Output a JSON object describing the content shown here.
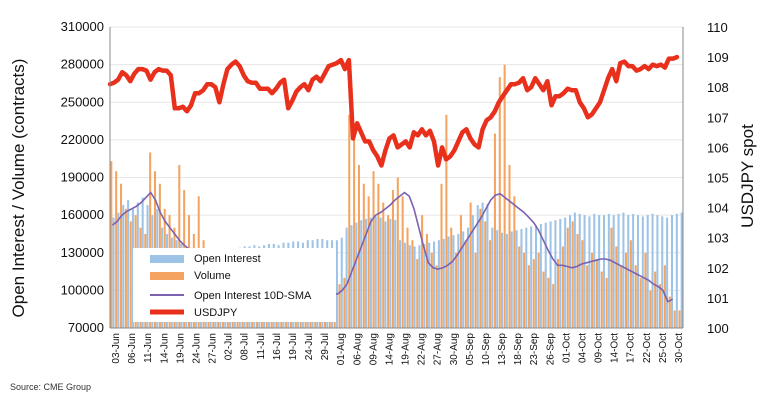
{
  "chart_data": {
    "type": "bar+line",
    "ylabel_left": "Open Interest / Volume (contracts)",
    "ylabel_right": "USDJPY spot",
    "ylim_left": [
      70000,
      310000
    ],
    "yticks_left": [
      "70000",
      "100000",
      "130000",
      "160000",
      "190000",
      "220000",
      "250000",
      "280000",
      "310000"
    ],
    "ylim_right": [
      100,
      110
    ],
    "yticks_right": [
      "100",
      "101",
      "102",
      "103",
      "104",
      "105",
      "106",
      "107",
      "108",
      "109",
      "110"
    ],
    "x_tick_labels": [
      "03-Jun",
      "06-Jun",
      "11-Jun",
      "14-Jun",
      "19-Jun",
      "24-Jun",
      "27-Jun",
      "02-Jul",
      "08-Jul",
      "11-Jul",
      "16-Jul",
      "19-Jul",
      "24-Jul",
      "29-Jul",
      "01-Aug",
      "06-Aug",
      "09-Aug",
      "14-Aug",
      "19-Aug",
      "22-Aug",
      "27-Aug",
      "30-Aug",
      "05-Sep",
      "10-Sep",
      "13-Sep",
      "18-Sep",
      "23-Sep",
      "26-Sep",
      "01-Oct",
      "04-Oct",
      "09-Oct",
      "14-Oct",
      "17-Oct",
      "22-Oct",
      "25-Oct",
      "30-Oct"
    ],
    "legend": [
      "Open Interest",
      "Volume",
      "Open Interest 10D-SMA",
      "USDJPY"
    ],
    "colors": {
      "open_interest": "#9dc3e6",
      "volume": "#f4a460",
      "sma": "#7b62b0",
      "usdjpy": "#e8301c"
    },
    "series": [
      {
        "name": "Open Interest",
        "axis": "left",
        "values": [
          158000,
          162000,
          168000,
          172000,
          165000,
          170000,
          174000,
          168000,
          160000,
          165000,
          150000,
          145000,
          142000,
          140000,
          137000,
          135000,
          134000,
          132000,
          130000,
          128000,
          129000,
          130000,
          131000,
          130000,
          132000,
          133000,
          134000,
          135000,
          135000,
          136000,
          135000,
          136000,
          137000,
          137000,
          136000,
          138000,
          138000,
          139000,
          139000,
          138000,
          140000,
          140000,
          141000,
          141000,
          140000,
          140000,
          140000,
          142000,
          150000,
          152000,
          154000,
          156000,
          157000,
          158000,
          159000,
          158000,
          155000,
          157000,
          156000,
          140000,
          138000,
          136000,
          135000,
          136000,
          137000,
          138000,
          139000,
          140000,
          141000,
          143000,
          144000,
          145000,
          147000,
          150000,
          160000,
          168000,
          170000,
          169000,
          150000,
          148000,
          146000,
          145000,
          147000,
          148000,
          149000,
          150000,
          151000,
          152000,
          153000,
          154000,
          155000,
          156000,
          157000,
          158000,
          160000,
          162000,
          161000,
          160000,
          159000,
          161000,
          160000,
          160000,
          161000,
          160000,
          161000,
          162000,
          160000,
          161000,
          160000,
          159000,
          160000,
          161000,
          160000,
          159000,
          158000,
          160000,
          161000,
          162000
        ]
      },
      {
        "name": "Volume",
        "axis": "left",
        "values": [
          203000,
          195000,
          185000,
          165000,
          155000,
          160000,
          150000,
          145000,
          210000,
          195000,
          185000,
          165000,
          160000,
          150000,
          200000,
          180000,
          160000,
          145000,
          175000,
          140000,
          130000,
          120000,
          115000,
          125000,
          110000,
          100000,
          120000,
          115000,
          110000,
          105000,
          100000,
          95000,
          102000,
          98000,
          96000,
          100000,
          105000,
          98000,
          95000,
          100000,
          110000,
          105000,
          115000,
          108000,
          100000,
          95000,
          100000,
          105000,
          110000,
          240000,
          230000,
          200000,
          185000,
          175000,
          195000,
          185000,
          170000,
          160000,
          180000,
          190000,
          175000,
          150000,
          140000,
          125000,
          160000,
          145000,
          130000,
          120000,
          185000,
          240000,
          150000,
          130000,
          160000,
          140000,
          170000,
          130000,
          165000,
          155000,
          140000,
          225000,
          270000,
          280000,
          200000,
          175000,
          135000,
          130000,
          120000,
          125000,
          130000,
          115000,
          110000,
          105000,
          125000,
          135000,
          150000,
          155000,
          145000,
          140000,
          120000,
          130000,
          125000,
          115000,
          110000,
          150000,
          135000,
          120000,
          130000,
          140000,
          120000,
          110000,
          130000,
          100000,
          115000,
          105000,
          120000,
          95000,
          84000,
          84000
        ]
      },
      {
        "name": "Open Interest 10D-SMA",
        "axis": "left",
        "values": [
          152000,
          155000,
          160000,
          163000,
          165000,
          167000,
          170000,
          174000,
          178000,
          172000,
          162000,
          155000,
          150000,
          145000,
          140000,
          136000,
          133000,
          130000,
          128000,
          126000,
          125000,
          124000,
          123000,
          122000,
          123000,
          124000,
          122000,
          120000,
          118000,
          116000,
          115000,
          113000,
          112000,
          111000,
          110000,
          109000,
          108000,
          107000,
          106000,
          105000,
          104000,
          103000,
          102000,
          101000,
          100000,
          99000,
          98000,
          97000,
          100000,
          105000,
          115000,
          125000,
          135000,
          145000,
          155000,
          160000,
          162000,
          165000,
          168000,
          172000,
          175000,
          178000,
          175000,
          165000,
          150000,
          135000,
          122000,
          118000,
          117000,
          118000,
          120000,
          123000,
          128000,
          134000,
          140000,
          146000,
          152000,
          158000,
          165000,
          172000,
          176000,
          177000,
          174000,
          171000,
          168000,
          165000,
          162000,
          158000,
          154000,
          148000,
          140000,
          132000,
          125000,
          120000,
          120000,
          119000,
          118000,
          119000,
          121000,
          122000,
          123000,
          124000,
          125000,
          125000,
          124000,
          122000,
          120000,
          118000,
          116000,
          114000,
          112000,
          110000,
          108000,
          105000,
          103000,
          100000,
          91000,
          93000
        ]
      },
      {
        "name": "USDJPY",
        "axis": "right",
        "values": [
          108.1,
          108.15,
          108.25,
          108.5,
          108.4,
          108.2,
          108.45,
          108.6,
          108.6,
          108.55,
          108.25,
          108.5,
          108.6,
          108.55,
          108.55,
          108.4,
          107.3,
          107.3,
          107.35,
          107.2,
          107.4,
          107.8,
          107.8,
          107.9,
          108.1,
          108.1,
          108.0,
          107.5,
          108.1,
          108.6,
          108.75,
          108.85,
          108.7,
          108.4,
          108.2,
          108.15,
          108.15,
          107.95,
          107.95,
          107.95,
          107.8,
          107.95,
          108.15,
          108.25,
          107.3,
          107.55,
          107.85,
          108.0,
          108.1,
          107.9,
          108.25,
          108.35,
          108.2,
          108.45,
          108.7,
          108.75,
          108.8,
          108.9,
          108.6,
          108.9,
          106.3,
          106.8,
          106.5,
          106.2,
          106.2,
          105.9,
          105.7,
          105.4,
          105.9,
          106.3,
          106.4,
          106.0,
          106.1,
          106.2,
          106.0,
          106.5,
          106.4,
          106.6,
          106.4,
          106.55,
          106.2,
          105.4,
          106.0,
          105.6,
          105.7,
          105.9,
          106.2,
          106.5,
          106.6,
          106.3,
          106.1,
          106.0,
          106.6,
          106.9,
          107.0,
          107.2,
          107.5,
          107.7,
          107.9,
          108.1,
          108.1,
          108.15,
          108.3,
          107.9,
          108.0,
          108.3,
          108.1,
          107.9,
          108.2,
          107.4,
          107.7,
          107.7,
          107.8,
          107.95,
          107.9,
          107.9,
          107.5,
          107.3,
          107.0,
          107.1,
          107.3,
          107.5,
          107.9,
          108.3,
          108.6,
          108.2,
          108.8,
          108.85,
          108.7,
          108.7,
          108.55,
          108.6,
          108.7,
          108.6,
          108.75,
          108.7,
          108.75,
          108.65,
          108.95,
          108.95,
          109.0
        ]
      }
    ]
  },
  "source": "Source: CME Group"
}
